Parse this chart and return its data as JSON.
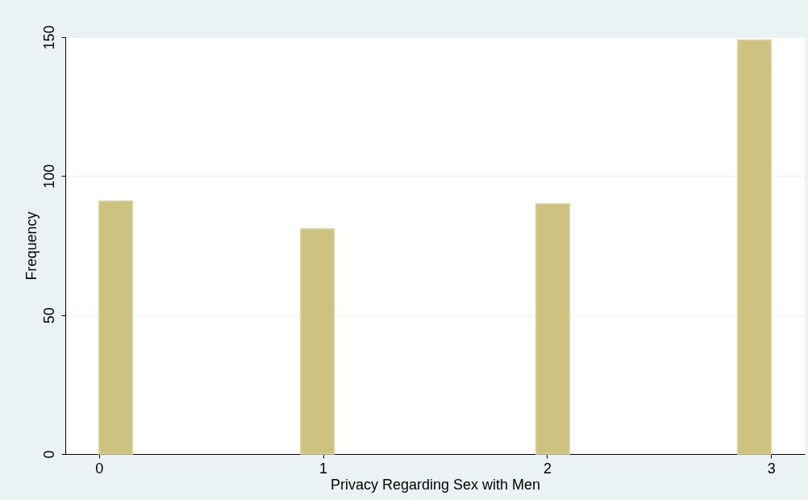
{
  "chart_data": {
    "type": "histogram",
    "xlabel": "Privacy Regarding Sex with Men",
    "ylabel": "Frequency",
    "bins": [
      0,
      0.15,
      0.3,
      0.45,
      0.6,
      0.75,
      0.9,
      1.05,
      1.2,
      1.35,
      1.5,
      1.65,
      1.8,
      1.95,
      2.1,
      2.25,
      2.4,
      2.55,
      2.7,
      2.85,
      3.0
    ],
    "values": [
      91,
      0,
      0,
      0,
      0,
      0,
      81,
      0,
      0,
      0,
      0,
      0,
      0,
      90,
      0,
      0,
      0,
      0,
      0,
      149
    ],
    "color": "#cdc27f",
    "xlim": [
      -0.15,
      3.15
    ],
    "xticks": [
      0,
      1,
      2,
      3
    ],
    "ylim": [
      0,
      150
    ],
    "yticks": [
      0,
      50,
      100,
      150
    ],
    "grid": "y"
  }
}
